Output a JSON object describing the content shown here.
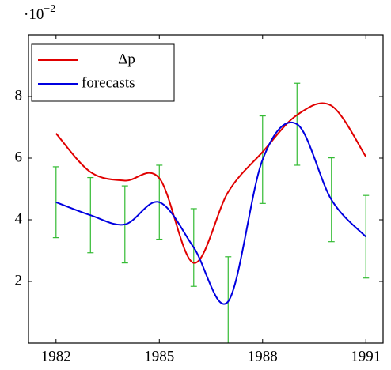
{
  "chart_data": {
    "type": "line",
    "y_multiplier": "·10",
    "y_multiplier_exponent": "−2",
    "x": [
      1982,
      1983,
      1984,
      1985,
      1986,
      1987,
      1988,
      1989,
      1990,
      1991
    ],
    "series": [
      {
        "name": "Δp",
        "color": "#e00000",
        "values": [
          6.8,
          5.55,
          5.27,
          5.35,
          2.6,
          4.9,
          6.2,
          7.4,
          7.7,
          6.05
        ]
      },
      {
        "name": "forecasts",
        "color": "#0000e0",
        "values": [
          4.57,
          4.15,
          3.85,
          4.57,
          3.1,
          1.35,
          5.95,
          7.1,
          4.65,
          3.45
        ],
        "errors": [
          1.15,
          1.22,
          1.25,
          1.2,
          1.26,
          1.45,
          1.42,
          1.33,
          1.36,
          1.34
        ],
        "error_color": "#33bb33"
      }
    ],
    "xlim": [
      1981.2,
      1991.5
    ],
    "ylim": [
      0,
      10
    ],
    "xticks": [
      1982,
      1985,
      1988,
      1991
    ],
    "yticks": [
      2,
      4,
      6,
      8
    ],
    "legend": "top-left",
    "grid": false
  }
}
